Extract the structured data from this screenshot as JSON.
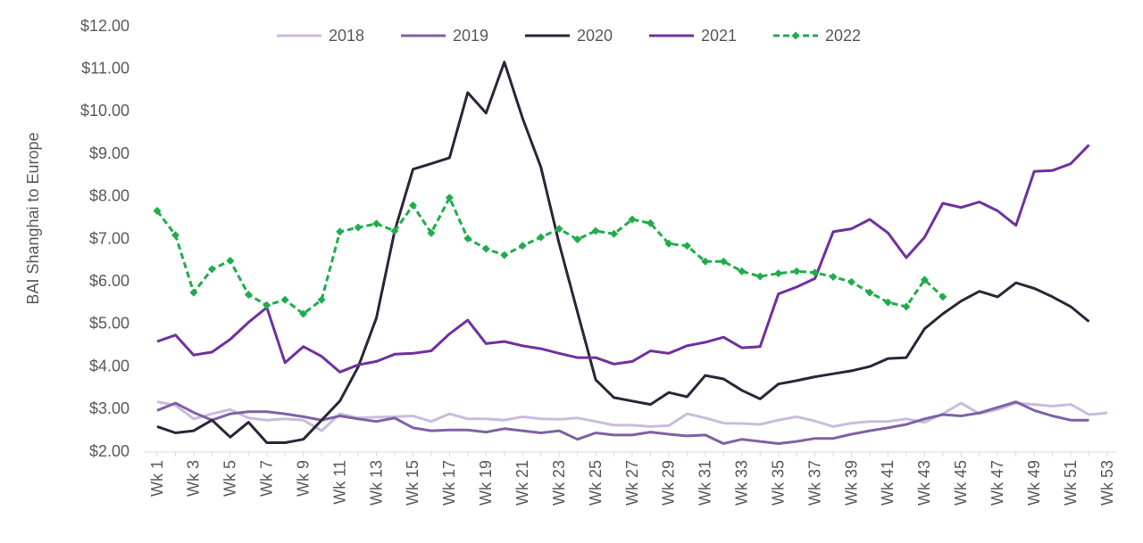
{
  "chart_data": {
    "type": "line",
    "y_label": "BAI Shanghai to Europe",
    "categories": [
      "Wk 1",
      null,
      "Wk 3",
      null,
      "Wk 5",
      null,
      "Wk 7",
      null,
      "Wk 9",
      null,
      "Wk 11",
      null,
      "Wk 13",
      null,
      "Wk 15",
      null,
      "Wk 17",
      null,
      "Wk 19",
      null,
      "Wk 21",
      null,
      "Wk 23",
      null,
      "Wk 25",
      null,
      "Wk 27",
      null,
      "Wk 29",
      null,
      "Wk 31",
      null,
      "Wk 33",
      null,
      "Wk 35",
      null,
      "Wk 37",
      null,
      "Wk 39",
      null,
      "Wk 41",
      null,
      "Wk 43",
      null,
      "Wk 45",
      null,
      "Wk 47",
      null,
      "Wk 49",
      null,
      "Wk 51",
      null,
      "Wk 53"
    ],
    "ylim": [
      2,
      12
    ],
    "yticks": [
      {
        "value": 2,
        "label": "$2.00"
      },
      {
        "value": 3,
        "label": "$3.00"
      },
      {
        "value": 4,
        "label": "$4.00"
      },
      {
        "value": 5,
        "label": "$5.00"
      },
      {
        "value": 6,
        "label": "$6.00"
      },
      {
        "value": 7,
        "label": "$7.00"
      },
      {
        "value": 8,
        "label": "$8.00"
      },
      {
        "value": 9,
        "label": "$9.00"
      },
      {
        "value": 10,
        "label": "$10.00"
      },
      {
        "value": 11,
        "label": "$11.00"
      },
      {
        "value": 12,
        "label": "$12.00"
      }
    ],
    "legend": "top",
    "series": [
      {
        "name": "2018",
        "color": "#cbbbdd",
        "values": [
          3.18,
          3.1,
          2.78,
          2.9,
          3.0,
          2.8,
          2.75,
          2.78,
          2.75,
          2.5,
          2.9,
          2.8,
          2.82,
          2.83,
          2.85,
          2.72,
          2.9,
          2.78,
          2.78,
          2.75,
          2.83,
          2.78,
          2.77,
          2.8,
          2.72,
          2.63,
          2.63,
          2.6,
          2.62,
          2.9,
          2.8,
          2.68,
          2.67,
          2.65,
          2.75,
          2.83,
          2.73,
          2.6,
          2.68,
          2.72,
          2.72,
          2.78,
          2.7,
          2.9,
          3.15,
          2.9,
          3.0,
          3.15,
          3.12,
          3.08,
          3.12,
          2.88,
          2.92
        ]
      },
      {
        "name": "2019",
        "color": "#7e62a4",
        "values": [
          2.98,
          3.15,
          2.93,
          2.75,
          2.9,
          2.95,
          2.95,
          2.9,
          2.83,
          2.75,
          2.85,
          2.78,
          2.72,
          2.8,
          2.57,
          2.5,
          2.52,
          2.52,
          2.47,
          2.55,
          2.5,
          2.45,
          2.5,
          2.3,
          2.45,
          2.4,
          2.4,
          2.47,
          2.42,
          2.38,
          2.4,
          2.2,
          2.3,
          2.25,
          2.2,
          2.25,
          2.32,
          2.32,
          2.42,
          2.5,
          2.57,
          2.65,
          2.78,
          2.88,
          2.85,
          2.92,
          3.05,
          3.18,
          2.98,
          2.85,
          2.75,
          2.75,
          null
        ]
      },
      {
        "name": "2020",
        "color": "#2e2438",
        "values": [
          2.6,
          2.45,
          2.5,
          2.75,
          2.35,
          2.7,
          2.22,
          2.22,
          2.3,
          2.75,
          3.2,
          4.0,
          5.15,
          7.2,
          8.65,
          8.78,
          8.92,
          10.45,
          9.97,
          11.17,
          9.85,
          8.7,
          6.9,
          5.3,
          3.7,
          3.28,
          3.2,
          3.12,
          3.4,
          3.3,
          3.8,
          3.72,
          3.45,
          3.25,
          3.6,
          3.68,
          3.77,
          3.84,
          3.91,
          4.01,
          4.2,
          4.22,
          4.9,
          5.25,
          5.55,
          5.78,
          5.65,
          5.98,
          5.85,
          5.65,
          5.42,
          5.07,
          null
        ]
      },
      {
        "name": "2021",
        "color": "#7030a0",
        "values": [
          4.6,
          4.75,
          4.28,
          4.35,
          4.65,
          5.05,
          5.4,
          4.1,
          4.48,
          4.25,
          3.88,
          4.05,
          4.13,
          4.3,
          4.32,
          4.38,
          4.78,
          5.1,
          4.55,
          4.6,
          4.5,
          4.43,
          4.32,
          4.22,
          4.22,
          4.07,
          4.13,
          4.38,
          4.32,
          4.5,
          4.58,
          4.7,
          4.45,
          4.48,
          5.72,
          5.88,
          6.08,
          7.18,
          7.25,
          7.47,
          7.15,
          6.57,
          7.05,
          7.85,
          7.75,
          7.88,
          7.67,
          7.33,
          8.6,
          8.62,
          8.78,
          9.22,
          null
        ]
      },
      {
        "name": "2022",
        "color": "#1fad4b",
        "dashed": true,
        "marker": "diamond",
        "values": [
          7.67,
          7.1,
          5.75,
          6.3,
          6.5,
          5.7,
          5.45,
          5.58,
          5.25,
          5.58,
          7.18,
          7.28,
          7.37,
          7.2,
          7.8,
          7.15,
          7.98,
          7.02,
          6.78,
          6.63,
          6.85,
          7.05,
          7.25,
          7.0,
          7.2,
          7.13,
          7.47,
          7.38,
          6.9,
          6.85,
          6.48,
          6.48,
          6.25,
          6.13,
          6.2,
          6.25,
          6.22,
          6.12,
          6.0,
          5.75,
          5.52,
          5.42,
          6.05,
          5.65,
          null,
          null,
          null,
          null,
          null,
          null,
          null,
          null,
          null
        ]
      }
    ]
  }
}
